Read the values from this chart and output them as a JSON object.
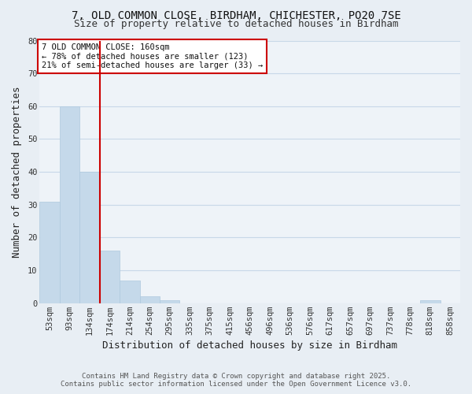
{
  "title": "7, OLD COMMON CLOSE, BIRDHAM, CHICHESTER, PO20 7SE",
  "subtitle": "Size of property relative to detached houses in Birdham",
  "xlabel": "Distribution of detached houses by size in Birdham",
  "ylabel": "Number of detached properties",
  "bar_labels": [
    "53sqm",
    "93sqm",
    "134sqm",
    "174sqm",
    "214sqm",
    "254sqm",
    "295sqm",
    "335sqm",
    "375sqm",
    "415sqm",
    "456sqm",
    "496sqm",
    "536sqm",
    "576sqm",
    "617sqm",
    "657sqm",
    "697sqm",
    "737sqm",
    "778sqm",
    "818sqm",
    "858sqm"
  ],
  "bar_values": [
    31,
    60,
    40,
    16,
    7,
    2,
    1,
    0,
    0,
    0,
    0,
    0,
    0,
    0,
    0,
    0,
    0,
    0,
    0,
    1,
    0
  ],
  "bar_color": "#c5d9ea",
  "bar_edge_color": "#aec9de",
  "grid_color": "#c8d8e8",
  "bg_color": "#e8eef4",
  "plot_bg_color": "#eef3f8",
  "marker_label": "7 OLD COMMON CLOSE: 160sqm",
  "annotation_line1": "← 78% of detached houses are smaller (123)",
  "annotation_line2": "21% of semi-detached houses are larger (33) →",
  "annotation_box_color": "#ffffff",
  "annotation_border_color": "#cc0000",
  "marker_line_color": "#cc0000",
  "ylim": [
    0,
    80
  ],
  "yticks": [
    0,
    10,
    20,
    30,
    40,
    50,
    60,
    70,
    80
  ],
  "footnote1": "Contains HM Land Registry data © Crown copyright and database right 2025.",
  "footnote2": "Contains public sector information licensed under the Open Government Licence v3.0.",
  "title_fontsize": 10,
  "subtitle_fontsize": 9,
  "axis_label_fontsize": 9,
  "tick_fontsize": 7.5,
  "annotation_fontsize": 7.5,
  "footnote_fontsize": 6.5
}
